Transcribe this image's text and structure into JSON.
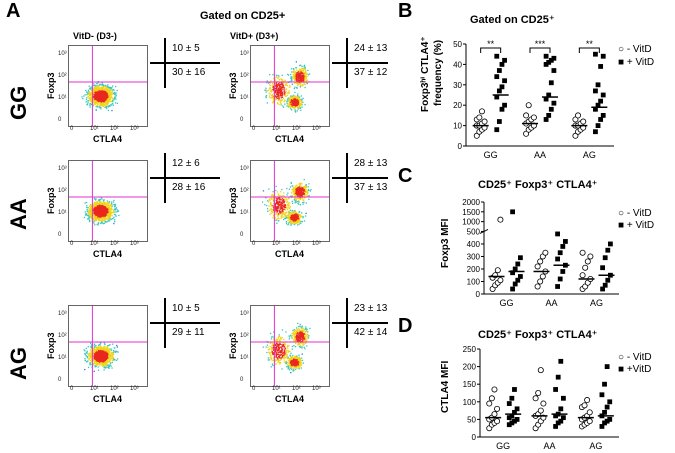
{
  "panel_letters": {
    "A": "A",
    "B": "B",
    "C": "C",
    "D": "D"
  },
  "panelA": {
    "title": "Gated on CD25+",
    "col1_header": "VitD- (D3-)",
    "col2_header": "VitD+ (D3+)",
    "x_label": "CTLA4",
    "y_label": "Foxp3",
    "ticks": [
      "0",
      "10¹",
      "10²",
      "10³"
    ],
    "rows": [
      {
        "genotype": "GG",
        "left_top": "10 ± 5",
        "left_bottom": "30 ± 16",
        "right_top": "24 ± 13",
        "right_bottom": "37 ± 12"
      },
      {
        "genotype": "AA",
        "left_top": "12 ± 6",
        "left_bottom": "28 ± 16",
        "right_top": "28 ± 13",
        "right_bottom": "37 ± 13"
      },
      {
        "genotype": "AG",
        "left_top": "10 ± 5",
        "left_bottom": "29 ± 11",
        "right_top": "23 ± 13",
        "right_bottom": "42 ± 14"
      }
    ]
  },
  "panelB": {
    "title": "Gated on CD25⁺",
    "ylabel_line1": "Foxp3ʰⁱ CTLA4⁺",
    "ylabel_line2": "frequency (%)",
    "legend_minus": "- VitD",
    "legend_plus": "+ VitD",
    "significance": [
      "**",
      "***",
      "**"
    ]
  },
  "panelC": {
    "title": "CD25⁺ Foxp3⁺ CTLA4⁺",
    "ylabel": "Foxp3 MFI",
    "legend_minus": "- VitD",
    "legend_plus": "+ VitD"
  },
  "panelD": {
    "title": "CD25⁺ Foxp3⁺ CTLA4⁺",
    "ylabel": "CTLA4 MFI",
    "legend_minus": "- VitD",
    "legend_plus": "+VitD"
  },
  "chart_data": [
    {
      "type": "scatter",
      "title": "Gated on CD25⁺",
      "ylabel": "Foxp3ʰⁱ CTLA4⁺ frequency (%)",
      "categories": [
        "GG",
        "AA",
        "AG"
      ],
      "ylim": [
        0,
        50
      ],
      "yticks": [
        "0",
        "10",
        "20",
        "30",
        "40",
        "50"
      ],
      "series": [
        {
          "name": "- VitD",
          "values": [
            [
              5,
              7,
              8,
              9,
              10,
              10,
              11,
              12,
              13,
              14,
              17
            ],
            [
              6,
              8,
              9,
              10,
              11,
              12,
              13,
              14,
              15,
              20
            ],
            [
              5,
              7,
              8,
              9,
              10,
              10,
              11,
              12,
              13,
              15
            ]
          ],
          "means": [
            10,
            11,
            10
          ]
        },
        {
          "name": "+ VitD",
          "values": [
            [
              8,
              12,
              18,
              20,
              24,
              27,
              29,
              32,
              34,
              37,
              40,
              42,
              44
            ],
            [
              13,
              15,
              18,
              21,
              23,
              25,
              31,
              37,
              40,
              41,
              42,
              43,
              44
            ],
            [
              7,
              10,
              13,
              15,
              18,
              20,
              22,
              25,
              27,
              30,
              39,
              44,
              45
            ]
          ],
          "means": [
            25,
            24,
            19
          ]
        }
      ]
    },
    {
      "type": "scatter",
      "title": "CD25⁺ Foxp3⁺ CTLA4⁺",
      "ylabel": "Foxp3 MFI",
      "categories": [
        "GG",
        "AA",
        "AG"
      ],
      "yticks": [
        "0",
        "100",
        "200",
        "300",
        "400",
        "500",
        "1000",
        "1500",
        "2000"
      ],
      "series": [
        {
          "name": "- VitD",
          "values": [
            [
              40,
              70,
              90,
              110,
              130,
              150,
              190,
              1100
            ],
            [
              60,
              100,
              140,
              180,
              220,
              260,
              300,
              330
            ],
            [
              40,
              60,
              90,
              120,
              150,
              210,
              260,
              300,
              330
            ]
          ],
          "means": [
            140,
            180,
            120
          ]
        },
        {
          "name": "+ VitD",
          "values": [
            [
              40,
              80,
              110,
              140,
              170,
              200,
              240,
              290,
              1500
            ],
            [
              60,
              120,
              180,
              230,
              280,
              330,
              380,
              420,
              480
            ],
            [
              40,
              70,
              110,
              150,
              210,
              290,
              350,
              400
            ]
          ],
          "means": [
            180,
            230,
            150
          ]
        }
      ]
    },
    {
      "type": "scatter",
      "title": "CD25⁺ Foxp3⁺ CTLA4⁺",
      "ylabel": "CTLA4 MFI",
      "categories": [
        "GG",
        "AA",
        "AG"
      ],
      "ylim": [
        0,
        250
      ],
      "yticks": [
        "0",
        "50",
        "100",
        "150",
        "200",
        "250"
      ],
      "series": [
        {
          "name": "- VitD",
          "values": [
            [
              25,
              35,
              40,
              45,
              50,
              55,
              65,
              80,
              95,
              110,
              135
            ],
            [
              25,
              35,
              45,
              55,
              60,
              65,
              75,
              95,
              110,
              125,
              190
            ],
            [
              30,
              35,
              40,
              45,
              50,
              55,
              60,
              70,
              85,
              90,
              105
            ]
          ],
          "means": [
            55,
            60,
            55
          ]
        },
        {
          "name": "+VitD",
          "values": [
            [
              35,
              40,
              45,
              50,
              55,
              60,
              70,
              80,
              95,
              110,
              135
            ],
            [
              30,
              40,
              45,
              55,
              60,
              65,
              80,
              110,
              135,
              170,
              215
            ],
            [
              30,
              40,
              45,
              50,
              60,
              70,
              85,
              100,
              120,
              150,
              200
            ]
          ],
          "means": [
            65,
            65,
            60
          ]
        }
      ]
    }
  ]
}
